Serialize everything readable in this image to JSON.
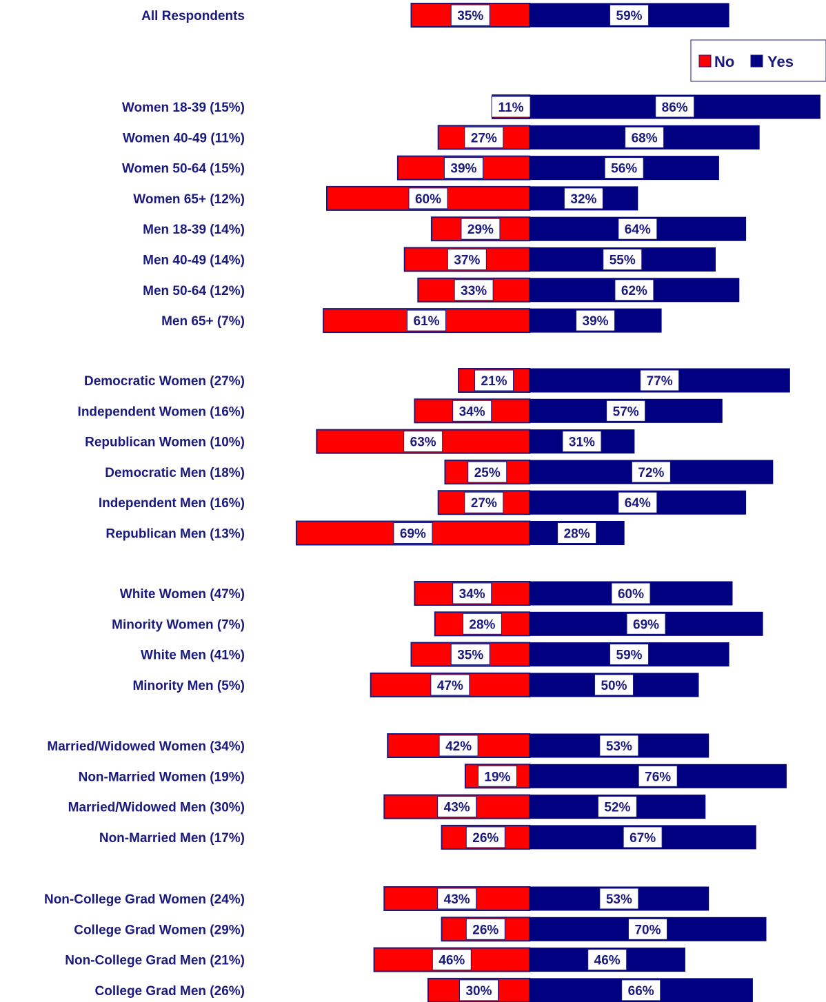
{
  "chart_data": {
    "type": "bar",
    "orientation": "horizontal-diverging",
    "legend": {
      "placement": "top-right",
      "entries": [
        {
          "name": "No",
          "color": "#ff0000"
        },
        {
          "name": "Yes",
          "color": "#000080"
        }
      ]
    },
    "colors": {
      "no": "#ff0000",
      "yes": "#000080",
      "label": "#1a1a7e",
      "outline": "#1a1a7e"
    },
    "series": [
      {
        "name": "No",
        "key": "no"
      },
      {
        "name": "Yes",
        "key": "yes"
      }
    ],
    "groups": [
      {
        "rows": [
          {
            "category": "All Respondents",
            "no": 35,
            "yes": 59,
            "no_label": "35%",
            "yes_label": "59%"
          }
        ]
      },
      {
        "rows": [
          {
            "category": "Women 18-39 (15%)",
            "no": 11,
            "yes": 86,
            "no_label": "11%",
            "yes_label": "86%"
          },
          {
            "category": "Women 40-49 (11%)",
            "no": 27,
            "yes": 68,
            "no_label": "27%",
            "yes_label": "68%"
          },
          {
            "category": "Women 50-64 (15%)",
            "no": 39,
            "yes": 56,
            "no_label": "39%",
            "yes_label": "56%"
          },
          {
            "category": "Women 65+ (12%)",
            "no": 60,
            "yes": 32,
            "no_label": "60%",
            "yes_label": "32%"
          },
          {
            "category": "Men 18-39 (14%)",
            "no": 29,
            "yes": 64,
            "no_label": "29%",
            "yes_label": "64%"
          },
          {
            "category": "Men 40-49 (14%)",
            "no": 37,
            "yes": 55,
            "no_label": "37%",
            "yes_label": "55%"
          },
          {
            "category": "Men 50-64 (12%)",
            "no": 33,
            "yes": 62,
            "no_label": "33%",
            "yes_label": "62%"
          },
          {
            "category": "Men 65+ (7%)",
            "no": 61,
            "yes": 39,
            "no_label": "61%",
            "yes_label": "39%"
          }
        ]
      },
      {
        "rows": [
          {
            "category": "Democratic Women (27%)",
            "no": 21,
            "yes": 77,
            "no_label": "21%",
            "yes_label": "77%"
          },
          {
            "category": "Independent Women (16%)",
            "no": 34,
            "yes": 57,
            "no_label": "34%",
            "yes_label": "57%"
          },
          {
            "category": "Republican Women (10%)",
            "no": 63,
            "yes": 31,
            "no_label": "63%",
            "yes_label": "31%"
          },
          {
            "category": "Democratic Men (18%)",
            "no": 25,
            "yes": 72,
            "no_label": "25%",
            "yes_label": "72%"
          },
          {
            "category": "Independent Men (16%)",
            "no": 27,
            "yes": 64,
            "no_label": "27%",
            "yes_label": "64%"
          },
          {
            "category": "Republican Men (13%)",
            "no": 69,
            "yes": 28,
            "no_label": "69%",
            "yes_label": "28%"
          }
        ]
      },
      {
        "rows": [
          {
            "category": "White Women (47%)",
            "no": 34,
            "yes": 60,
            "no_label": "34%",
            "yes_label": "60%"
          },
          {
            "category": "Minority Women (7%)",
            "no": 28,
            "yes": 69,
            "no_label": "28%",
            "yes_label": "69%"
          },
          {
            "category": "White Men (41%)",
            "no": 35,
            "yes": 59,
            "no_label": "35%",
            "yes_label": "59%"
          },
          {
            "category": "Minority Men (5%)",
            "no": 47,
            "yes": 50,
            "no_label": "47%",
            "yes_label": "50%"
          }
        ]
      },
      {
        "rows": [
          {
            "category": "Married/Widowed Women (34%)",
            "no": 42,
            "yes": 53,
            "no_label": "42%",
            "yes_label": "53%"
          },
          {
            "category": "Non-Married Women (19%)",
            "no": 19,
            "yes": 76,
            "no_label": "19%",
            "yes_label": "76%"
          },
          {
            "category": "Married/Widowed Men (30%)",
            "no": 43,
            "yes": 52,
            "no_label": "43%",
            "yes_label": "52%"
          },
          {
            "category": "Non-Married Men (17%)",
            "no": 26,
            "yes": 67,
            "no_label": "26%",
            "yes_label": "67%"
          }
        ]
      },
      {
        "rows": [
          {
            "category": "Non-College Grad Women (24%)",
            "no": 43,
            "yes": 53,
            "no_label": "43%",
            "yes_label": "53%"
          },
          {
            "category": "College Grad Women (29%)",
            "no": 26,
            "yes": 70,
            "no_label": "26%",
            "yes_label": "70%"
          },
          {
            "category": "Non-College Grad Men (21%)",
            "no": 46,
            "yes": 46,
            "no_label": "46%",
            "yes_label": "46%"
          },
          {
            "category": "College Grad Men (26%)",
            "no": 30,
            "yes": 66,
            "no_label": "30%",
            "yes_label": "66%"
          }
        ]
      }
    ]
  }
}
